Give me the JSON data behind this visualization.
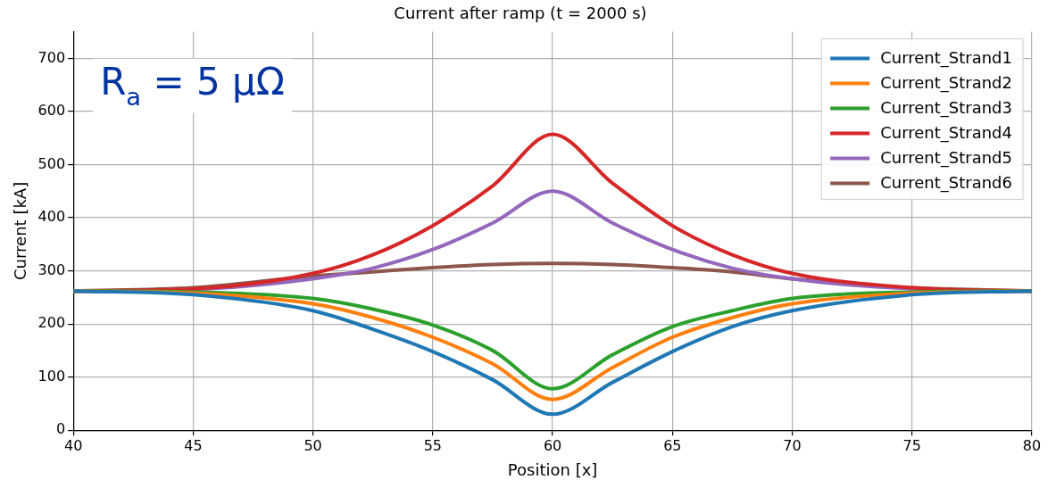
{
  "chart_data": {
    "type": "line",
    "title": "Current after ramp (t = 2000 s)",
    "xlabel": "Position [x]",
    "ylabel": "Current [kA]",
    "annotations": [
      "R$_{a}$ = 5 μΩ"
    ],
    "xlim": [
      40,
      80
    ],
    "xticks": [
      40,
      45,
      50,
      55,
      60,
      65,
      70,
      75,
      80
    ],
    "ylim": [
      0,
      750
    ],
    "yticks": [
      0,
      100,
      200,
      300,
      400,
      500,
      600,
      700
    ],
    "grid": true,
    "legend": "top right",
    "marker": "none",
    "line_style": "solid",
    "x": [
      40,
      45,
      50,
      52.5,
      55,
      57.5,
      60,
      62.5,
      65,
      67.5,
      70,
      75,
      80
    ],
    "series": [
      {
        "name": "Current_Strand1",
        "color": "#1f77b4",
        "values": [
          262,
          255,
          225,
          190,
          148,
          95,
          30,
          90,
          148,
          195,
          225,
          255,
          262
        ]
      },
      {
        "name": "Current_Strand2",
        "color": "#ff7f0e",
        "values": [
          262,
          258,
          238,
          212,
          175,
          125,
          58,
          118,
          175,
          212,
          238,
          258,
          262
        ]
      },
      {
        "name": "Current_Strand3",
        "color": "#2ca02c",
        "values": [
          262,
          260,
          248,
          228,
          198,
          150,
          78,
          142,
          195,
          225,
          248,
          260,
          262
        ]
      },
      {
        "name": "Current_Strand4",
        "color": "#d62728",
        "values": [
          262,
          266,
          295,
          330,
          385,
          460,
          557,
          465,
          385,
          330,
          295,
          268,
          262
        ]
      },
      {
        "name": "Current_Strand5",
        "color": "#9467bd",
        "values": [
          262,
          265,
          285,
          305,
          340,
          390,
          450,
          390,
          340,
          305,
          285,
          266,
          262
        ]
      },
      {
        "name": "Current_Strand6",
        "color": "#8c564b",
        "values": [
          262,
          268,
          290,
          298,
          306,
          312,
          314,
          312,
          306,
          298,
          285,
          268,
          262
        ]
      }
    ]
  }
}
